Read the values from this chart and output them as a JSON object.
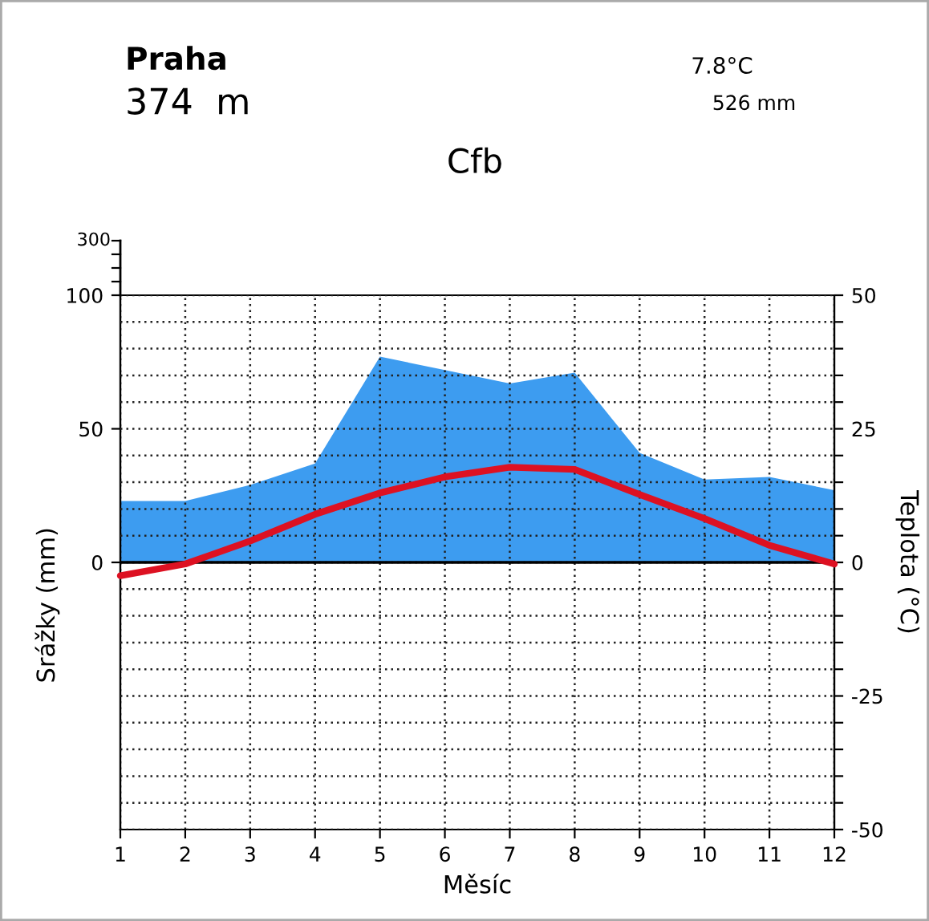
{
  "chart_data": {
    "type": "area",
    "title": "Praha",
    "subtitle": "374  m",
    "annotations": [
      "7.8°C",
      "526 mm",
      "Cfb",
      "300"
    ],
    "xlabel": "Měsíc",
    "ylabel": "Srážky (mm)",
    "y2label": "Teplota (°C)",
    "x": [
      1,
      2,
      3,
      4,
      5,
      6,
      7,
      8,
      9,
      10,
      11,
      12
    ],
    "xlim": [
      1,
      12
    ],
    "xticks": [
      1,
      2,
      3,
      4,
      5,
      6,
      7,
      8,
      9,
      10,
      11,
      12
    ],
    "ylim": [
      -100,
      100
    ],
    "yticks": [
      0,
      50,
      100
    ],
    "y2lim": [
      -50,
      50
    ],
    "y2ticks": [
      -50,
      {
        "value": -45,
        "label": null
      },
      {
        "value": -40,
        "label": null
      },
      {
        "value": -35,
        "label": null
      },
      {
        "value": -30,
        "label": null
      },
      -25,
      {
        "value": -20,
        "label": null
      },
      {
        "value": -15,
        "label": null
      },
      {
        "value": -10,
        "label": null
      },
      {
        "value": -5,
        "label": null
      },
      0,
      {
        "value": 5,
        "label": null
      },
      {
        "value": 10,
        "label": null
      },
      {
        "value": 15,
        "label": null
      },
      {
        "value": 20,
        "label": null
      },
      25,
      {
        "value": 30,
        "label": null
      },
      {
        "value": 35,
        "label": null
      },
      {
        "value": 40,
        "label": null
      },
      {
        "value": 45,
        "label": null
      },
      50
    ],
    "grid": true,
    "ref_lines": [
      {
        "axis": "y2",
        "value": 0,
        "label": null,
        "color": "#000000"
      }
    ],
    "series": [
      {
        "color": "#3d9cf0",
        "values": [
          23,
          23,
          29,
          37,
          77,
          72,
          67,
          71,
          41,
          31,
          32,
          27
        ]
      },
      {
        "type": "line",
        "axis": "y2",
        "color": "#dd1122",
        "line_style": "solid",
        "marker": "none",
        "values": [
          -2.5,
          -0.3,
          4,
          9,
          13,
          16,
          17.8,
          17.4,
          12.7,
          8.2,
          3.2,
          -0.3
        ]
      }
    ]
  }
}
